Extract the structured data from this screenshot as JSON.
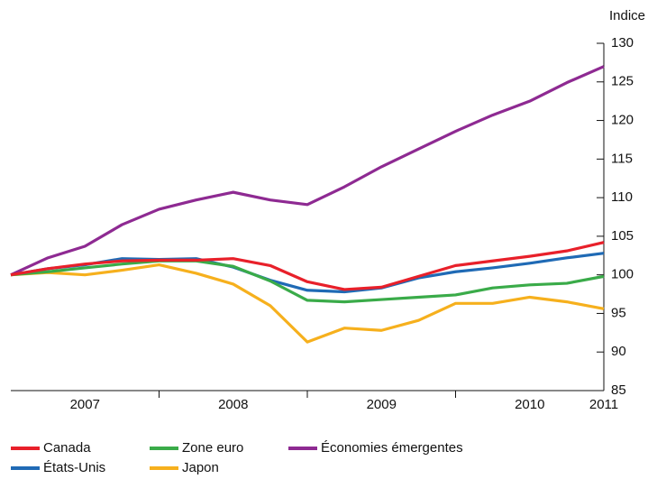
{
  "chart_data": {
    "type": "line",
    "y_label": "Indice",
    "x": [
      2007,
      2007.25,
      2007.5,
      2007.75,
      2008,
      2008.25,
      2008.5,
      2008.75,
      2009,
      2009.25,
      2009.5,
      2009.75,
      2010,
      2010.25,
      2010.5,
      2010.75,
      2011
    ],
    "xlim": [
      2007,
      2011
    ],
    "xticks": [
      {
        "value": 2007.5,
        "label": "2007"
      },
      {
        "value": 2008.5,
        "label": "2008"
      },
      {
        "value": 2009.5,
        "label": "2009"
      },
      {
        "value": 2010.5,
        "label": "2010"
      },
      2011
    ],
    "xminorticks": [
      2008,
      2009,
      2010
    ],
    "ylim": [
      85,
      130
    ],
    "yticks": [
      85,
      90,
      95,
      100,
      105,
      110,
      115,
      120,
      125,
      130
    ],
    "grid": false,
    "legend": "bottom",
    "series": [
      {
        "name": "Canada",
        "color": "#e8202a",
        "values": [
          100,
          100.8,
          101.4,
          101.8,
          101.9,
          101.9,
          102.1,
          101.2,
          99.1,
          98.1,
          98.4,
          99.8,
          101.2,
          101.8,
          102.4,
          103.1,
          104.2
        ]
      },
      {
        "name": "Zone euro",
        "color": "#3aab49",
        "values": [
          100,
          100.4,
          100.9,
          101.4,
          101.8,
          101.8,
          101.1,
          99.2,
          96.7,
          96.5,
          96.8,
          97.1,
          97.4,
          98.3,
          98.7,
          98.9,
          99.8
        ]
      },
      {
        "name": "Économies émergentes",
        "color": "#8e2a92",
        "values": [
          100,
          102.2,
          103.7,
          106.5,
          108.5,
          109.7,
          110.7,
          109.7,
          109.1,
          111.4,
          114,
          116.3,
          118.6,
          120.7,
          122.5,
          124.9,
          127
        ]
      },
      {
        "name": "États-Unis",
        "color": "#1f6ab5",
        "values": [
          100,
          100.8,
          101.3,
          102.1,
          102,
          102.1,
          101,
          99.3,
          98,
          97.8,
          98.3,
          99.6,
          100.4,
          100.9,
          101.5,
          102.2,
          102.8
        ]
      },
      {
        "name": "Japon",
        "color": "#f6b01d",
        "values": [
          100,
          100.3,
          100,
          100.6,
          101.3,
          100.2,
          98.8,
          96,
          91.3,
          93.1,
          92.8,
          94.1,
          96.3,
          96.3,
          97.1,
          96.5,
          95.6
        ]
      }
    ]
  }
}
